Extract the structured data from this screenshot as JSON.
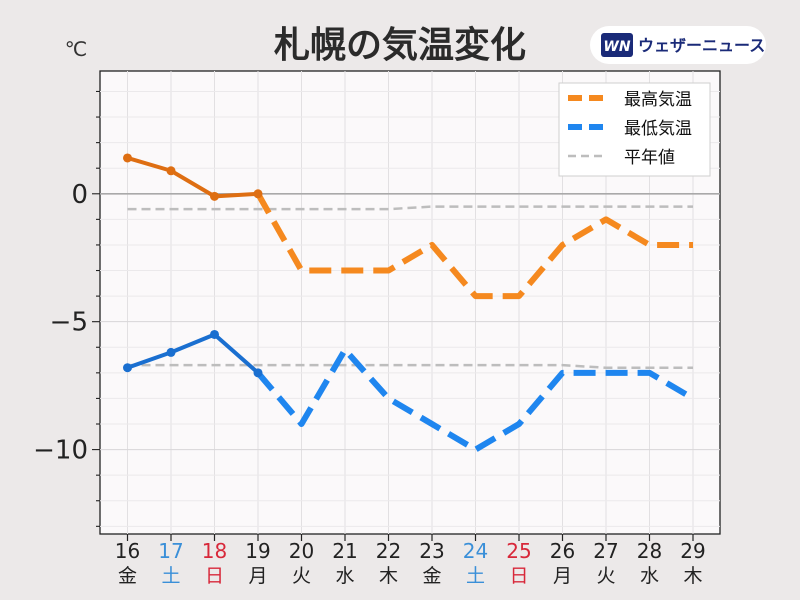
{
  "header": {
    "title": "札幌の気温変化",
    "brand_text": "ウェザーニュース",
    "brand_logo": "WN"
  },
  "colors": {
    "background": "#ece9e9",
    "plot_bg": "#fbf9fa",
    "max_observed": "#de6e12",
    "max_forecast": "#f5891f",
    "min_observed": "#1a6fd0",
    "min_forecast": "#1f86ef",
    "normal": "#bdbdbd",
    "saturday": "#3a8fd8",
    "sunday": "#d8283a",
    "weekday": "#222222",
    "brand_navy": "#1a2a78"
  },
  "chart_data": {
    "type": "line",
    "ylabel": "℃",
    "ylim": [
      -13.3,
      4.8
    ],
    "yticks": [
      {
        "value": 0,
        "label": "0"
      },
      {
        "value": -5,
        "label": "−5"
      },
      {
        "value": -10,
        "label": "−10"
      }
    ],
    "categories": [
      "16",
      "17",
      "18",
      "19",
      "20",
      "21",
      "22",
      "23",
      "24",
      "25",
      "26",
      "27",
      "28",
      "29"
    ],
    "weekdays": [
      "金",
      "土",
      "日",
      "月",
      "火",
      "水",
      "木",
      "金",
      "土",
      "日",
      "月",
      "火",
      "水",
      "木"
    ],
    "day_types": [
      "weekday",
      "saturday",
      "sunday",
      "weekday",
      "weekday",
      "weekday",
      "weekday",
      "weekday",
      "saturday",
      "sunday",
      "weekday",
      "weekday",
      "weekday",
      "weekday"
    ],
    "observed_until_index": 3,
    "series": [
      {
        "key": "max",
        "name": "最高気温",
        "values": [
          1.4,
          0.9,
          -0.1,
          0.0,
          -3.0,
          -3.0,
          -3.0,
          -2.0,
          -4.0,
          -4.0,
          -2.0,
          -1.0,
          -2.0,
          -2.0
        ]
      },
      {
        "key": "min",
        "name": "最低気温",
        "values": [
          -6.8,
          -6.2,
          -5.5,
          -7.0,
          -9.0,
          -6.1,
          -8.0,
          -9.0,
          -10.0,
          -9.0,
          -7.0,
          -7.0,
          -7.0,
          -8.0
        ]
      },
      {
        "key": "normal",
        "name": "平年値",
        "high_values": [
          -0.6,
          -0.6,
          -0.6,
          -0.6,
          -0.6,
          -0.6,
          -0.6,
          -0.5,
          -0.5,
          -0.5,
          -0.5,
          -0.5,
          -0.5,
          -0.5
        ],
        "low_values": [
          -6.7,
          -6.7,
          -6.7,
          -6.7,
          -6.7,
          -6.7,
          -6.7,
          -6.7,
          -6.7,
          -6.7,
          -6.7,
          -6.8,
          -6.8,
          -6.8
        ]
      }
    ],
    "grid": true,
    "legend": "top-right"
  }
}
